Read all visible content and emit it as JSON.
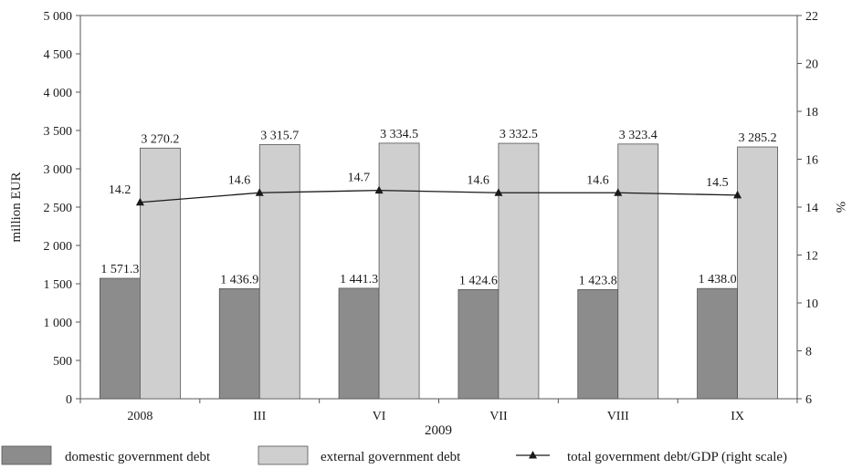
{
  "chart_data": {
    "type": "bar",
    "categories": [
      "2008",
      "III",
      "VI",
      "VII",
      "VIII",
      "IX"
    ],
    "xlabel": "2009",
    "ylabel": "million EUR",
    "ylabel_right": "%",
    "ylim": [
      0,
      5000
    ],
    "ylim_right": [
      6,
      22
    ],
    "y_ticks": [
      "0",
      "500",
      "1 000",
      "1 500",
      "2 000",
      "2 500",
      "3 000",
      "3 500",
      "4 000",
      "4 500",
      "5 000"
    ],
    "y_ticks_right": [
      "6",
      "8",
      "10",
      "12",
      "14",
      "16",
      "18",
      "20",
      "22"
    ],
    "grid": false,
    "legend_position": "bottom",
    "series": [
      {
        "name": "domestic government debt",
        "type": "bar",
        "axis": "left",
        "color": "#8c8c8c",
        "values": [
          1571.3,
          1436.9,
          1441.3,
          1424.6,
          1423.8,
          1438.0
        ],
        "labels": [
          "1 571.3",
          "1 436.9",
          "1 441.3",
          "1 424.6",
          "1 423.8",
          "1 438.0"
        ]
      },
      {
        "name": "external government debt",
        "type": "bar",
        "axis": "left",
        "color": "#cfcfcf",
        "values": [
          3270.2,
          3315.7,
          3334.5,
          3332.5,
          3323.4,
          3285.2
        ],
        "labels": [
          "3 270.2",
          "3 315.7",
          "3 334.5",
          "3 332.5",
          "3 323.4",
          "3 285.2"
        ]
      },
      {
        "name": "total government debt/GDP (right scale)",
        "type": "line",
        "axis": "right",
        "color": "#1a1a1a",
        "marker": "triangle",
        "values": [
          14.2,
          14.6,
          14.7,
          14.6,
          14.6,
          14.5
        ],
        "labels": [
          "14.2",
          "14.6",
          "14.7",
          "14.6",
          "14.6",
          "14.5"
        ]
      }
    ]
  }
}
